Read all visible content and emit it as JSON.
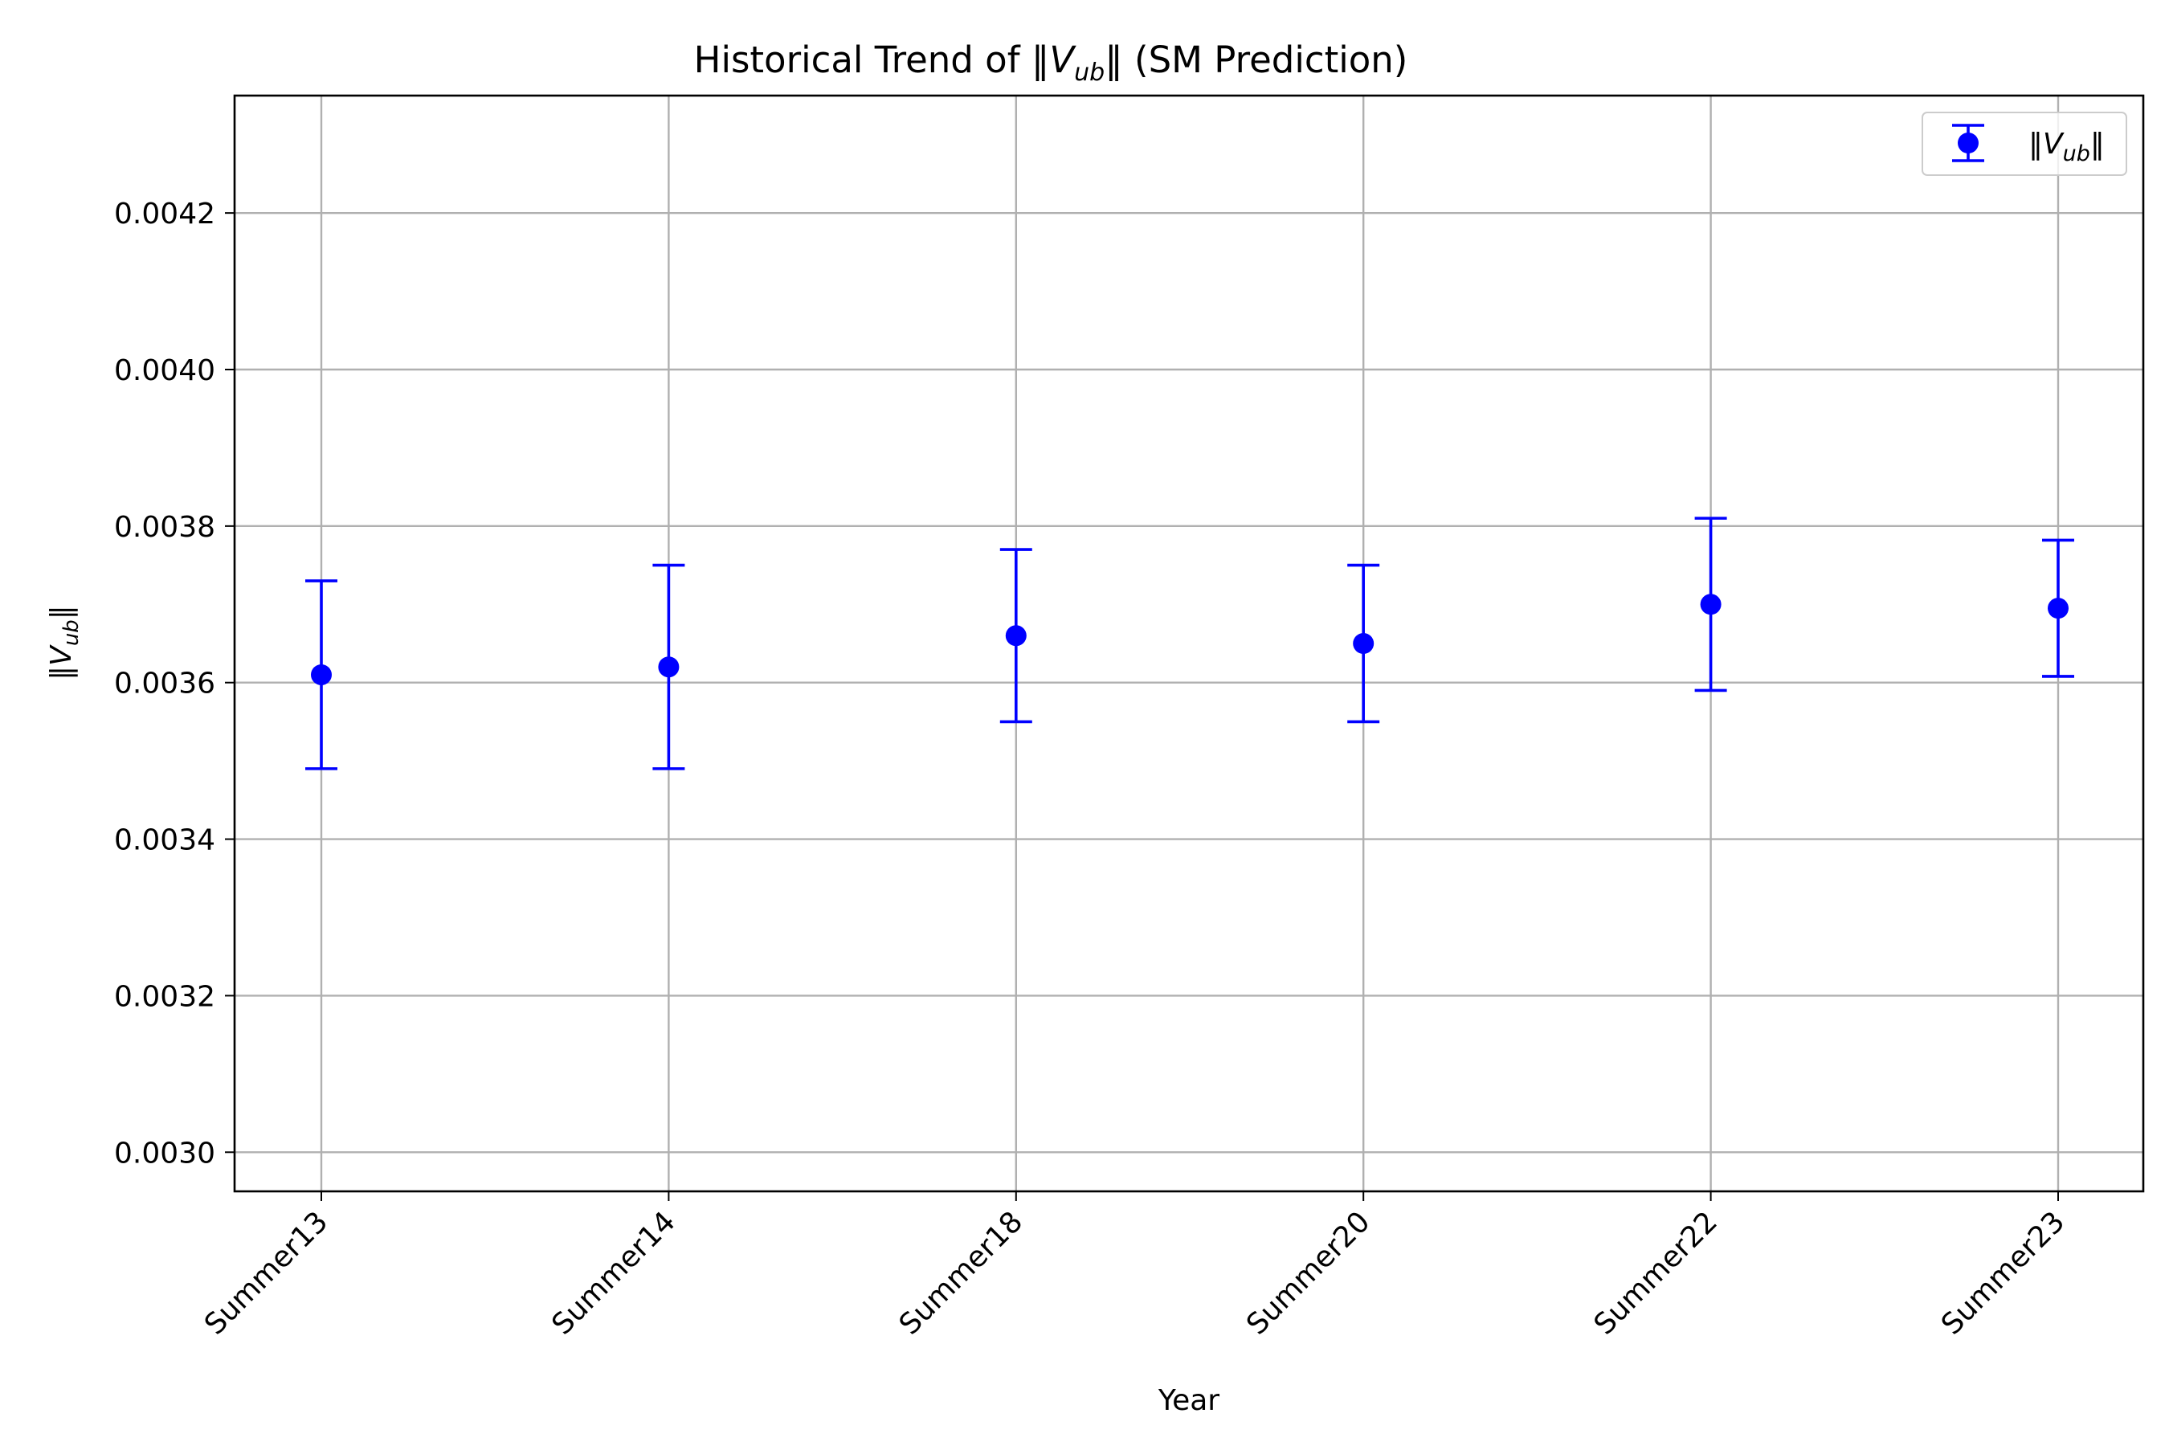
{
  "chart_data": {
    "type": "scatter",
    "title": "Historical Trend of ",
    "title_tail": " (SM Prediction)",
    "xlabel": "Year",
    "ylabel": "",
    "categories": [
      "Summer13",
      "Summer14",
      "Summer18",
      "Summer20",
      "Summer22",
      "Summer23"
    ],
    "series": [
      {
        "name": "||V_ub||",
        "values": [
          0.00361,
          0.00362,
          0.00366,
          0.00365,
          0.0037,
          0.003695
        ],
        "errors": [
          0.00012,
          0.00013,
          0.00011,
          0.0001,
          0.00011,
          8.7e-05
        ]
      }
    ],
    "ylim": [
      0.00295,
      0.00435
    ],
    "yticks": [
      "0.0030",
      "0.0032",
      "0.0034",
      "0.0036",
      "0.0038",
      "0.0040",
      "0.0042"
    ],
    "ytick_values": [
      0.003,
      0.0032,
      0.0034,
      0.0036,
      0.0038,
      0.004,
      0.0042
    ],
    "grid": true,
    "legend": "top-right",
    "color": "#0000ff",
    "math": {
      "norm_bar": "‖",
      "symbol": "V",
      "subscript": "ub"
    }
  }
}
